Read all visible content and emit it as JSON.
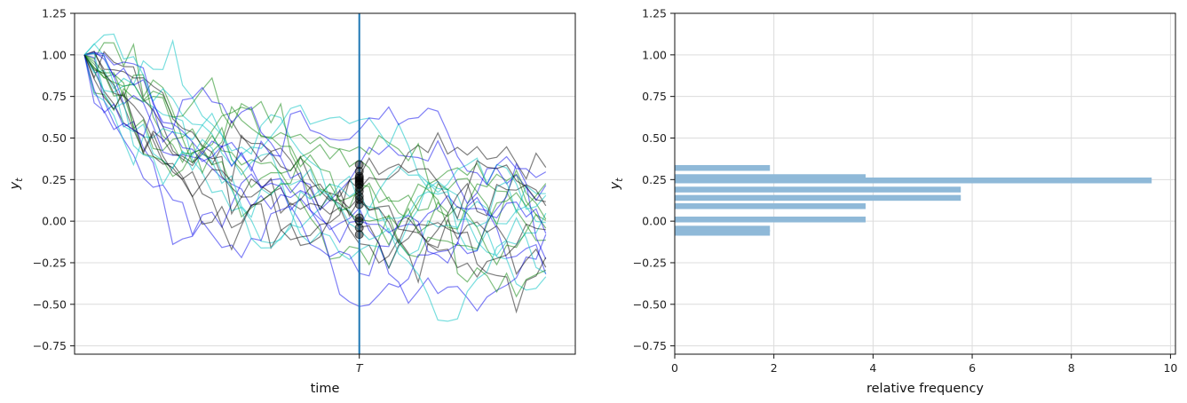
{
  "chart_data": [
    {
      "type": "line",
      "xlabel": "time",
      "ylabel": "y_t",
      "ylim": [
        -0.8,
        1.25
      ],
      "yticks": [
        -0.75,
        -0.5,
        -0.25,
        0.0,
        0.25,
        0.5,
        0.75,
        1.0,
        1.25
      ],
      "ytick_labels": [
        "−0.75",
        "−0.50",
        "−0.25",
        "0.00",
        "0.25",
        "0.50",
        "0.75",
        "1.00",
        "1.25"
      ],
      "xlim": [
        -1,
        50
      ],
      "xticks": [
        {
          "x": 28,
          "label": "T"
        }
      ],
      "grid": "y",
      "vertical_line_x": 28,
      "n_steps": 47,
      "series_colors": [
        "#1ec8c8",
        "#008000",
        "#0000ee",
        "#000000"
      ],
      "series_count": 24,
      "T_values": [
        0.34,
        0.3,
        0.27,
        0.26,
        0.25,
        0.24,
        0.23,
        0.22,
        0.2,
        0.18,
        0.15,
        0.13,
        0.1,
        0.02,
        0.0,
        -0.04,
        -0.08
      ]
    },
    {
      "type": "bar",
      "orientation": "horizontal",
      "xlabel": "relative frequency",
      "ylabel": "y_t",
      "xlim": [
        0,
        10.1
      ],
      "xticks": [
        0,
        2,
        4,
        6,
        8,
        10
      ],
      "xtick_labels": [
        "0",
        "2",
        "4",
        "6",
        "8",
        "10"
      ],
      "ylim": [
        -0.8,
        1.25
      ],
      "yticks": [
        -0.75,
        -0.5,
        -0.25,
        0.0,
        0.25,
        0.5,
        0.75,
        1.0,
        1.25
      ],
      "ytick_labels": [
        "−0.75",
        "−0.50",
        "−0.25",
        "0.00",
        "0.25",
        "0.50",
        "0.75",
        "1.00",
        "1.25"
      ],
      "grid": "both",
      "bar_color": "#8fb9d8",
      "bars": [
        {
          "y": 0.32,
          "value": 1.92
        },
        {
          "y": 0.265,
          "value": 3.85
        },
        {
          "y": 0.245,
          "value": 9.62
        },
        {
          "y": 0.19,
          "value": 5.77
        },
        {
          "y": 0.14,
          "value": 5.77
        },
        {
          "y": 0.09,
          "value": 3.85
        },
        {
          "y": 0.01,
          "value": 3.85
        },
        {
          "y": -0.045,
          "value": 1.92
        },
        {
          "y": -0.07,
          "value": 1.92
        }
      ]
    }
  ]
}
